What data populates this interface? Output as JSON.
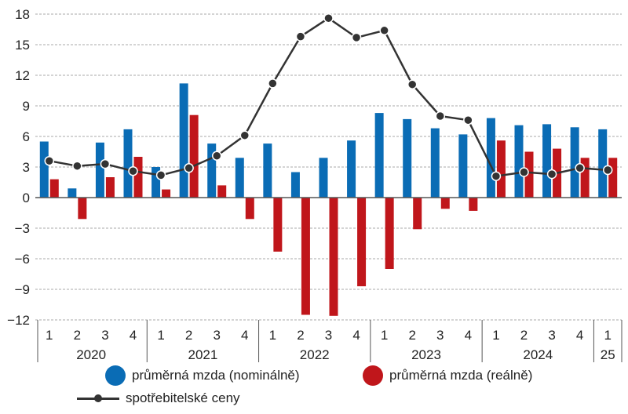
{
  "chart_data": {
    "type": "bar",
    "ylim": [
      -12,
      18
    ],
    "y_ticks": [
      "18",
      "15",
      "12",
      "9",
      "6",
      "3",
      "0",
      "−3",
      "−6",
      "−9",
      "−12"
    ],
    "quarters": [
      "1",
      "2",
      "3",
      "4",
      "1",
      "2",
      "3",
      "4",
      "1",
      "2",
      "3",
      "4",
      "1",
      "2",
      "3",
      "4",
      "1",
      "2",
      "3",
      "4",
      "1"
    ],
    "years": [
      "2020",
      "2021",
      "2022",
      "2023",
      "2024",
      "25"
    ],
    "grid": true,
    "series": [
      {
        "name": "průměrná mzda (nominálně)",
        "kind": "bar",
        "color": "#0a6cb5",
        "values": [
          5.5,
          0.9,
          5.4,
          6.7,
          3.0,
          11.2,
          5.3,
          3.9,
          5.3,
          2.5,
          3.9,
          5.6,
          8.3,
          7.7,
          6.8,
          6.2,
          7.8,
          7.1,
          7.2,
          6.9,
          6.7
        ]
      },
      {
        "name": "průměrná mzda (reálně)",
        "kind": "bar",
        "color": "#c0161b",
        "values": [
          1.8,
          -2.1,
          2.0,
          4.0,
          0.8,
          8.1,
          1.2,
          -2.1,
          -5.3,
          -11.5,
          -11.6,
          -8.7,
          -7.0,
          -3.1,
          -1.1,
          -1.3,
          5.6,
          4.5,
          4.8,
          3.9,
          3.9
        ]
      },
      {
        "name": "spotřebitelské ceny",
        "kind": "line",
        "color": "#333333",
        "values": [
          3.6,
          3.1,
          3.3,
          2.6,
          2.2,
          2.9,
          4.1,
          6.1,
          11.2,
          15.8,
          17.6,
          15.7,
          16.4,
          11.1,
          8.0,
          7.6,
          2.1,
          2.5,
          2.3,
          2.9,
          2.7
        ]
      }
    ]
  }
}
